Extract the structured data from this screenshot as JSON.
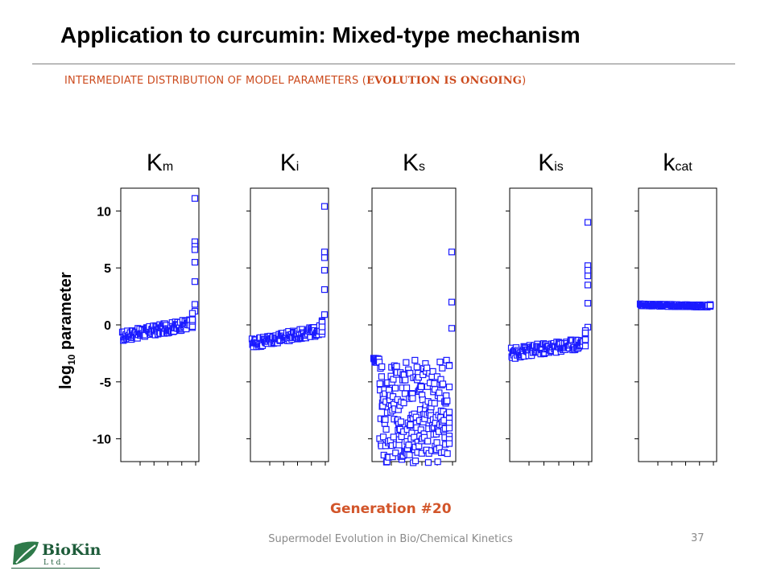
{
  "slide": {
    "title": "Application to curcumin: Mixed-type mechanism",
    "subtitle_pre": "INTERMEDIATE DISTRIBUTION OF MODEL PARAMETERS (",
    "subtitle_bold": "EVOLUTION IS ONGOING",
    "subtitle_post": ")",
    "generation": "Generation  #20",
    "footer_text": "Supermodel Evolution in Bio/Chemical Kinetics",
    "page_number": "37",
    "logo_text": "BioKin",
    "logo_sub": "Ltd."
  },
  "colors": {
    "accent": "#cc4b1e",
    "marker": "#1a1aff",
    "marker_fill": "#ffffff",
    "logo_green": "#1e5c3a"
  },
  "chart_data": {
    "type": "scatter",
    "ylabel_pre": "log",
    "ylabel_sub": "10",
    "ylabel_post": " parameter",
    "ylim": [
      -12,
      12
    ],
    "yticks": [
      10,
      5,
      0,
      -5,
      -10
    ],
    "ytick_labels": [
      "10",
      "5",
      "0",
      "-5",
      "-10"
    ],
    "grid": false,
    "panels": [
      {
        "name_main": "K",
        "name_sub": "m",
        "bulk_start": -1.0,
        "bulk_end": 0.1,
        "bulk_spread": 0.9,
        "outliers": [
          11.1,
          7.3,
          6.9,
          6.6,
          5.5,
          3.8,
          1.8,
          1.2
        ]
      },
      {
        "name_main": "K",
        "name_sub": "i",
        "bulk_start": -1.6,
        "bulk_end": -0.5,
        "bulk_spread": 0.9,
        "outliers": [
          10.4,
          6.4,
          5.9,
          4.8,
          3.1,
          0.9
        ]
      },
      {
        "name_main": "K",
        "name_sub": "s",
        "bulk_start": -3.1,
        "bulk_end": -3.1,
        "bulk_spread": 9.0,
        "outliers": [
          6.4,
          2.0,
          -0.3
        ]
      },
      {
        "name_main": "K",
        "name_sub": "is",
        "bulk_start": -2.5,
        "bulk_end": -1.6,
        "bulk_spread": 1.0,
        "outliers": [
          9.0,
          5.2,
          4.8,
          4.3,
          3.5,
          1.9,
          -0.2
        ]
      },
      {
        "name_main": "k",
        "name_sub": "cat",
        "bulk_start": 1.75,
        "bulk_end": 1.65,
        "bulk_spread": 0.2,
        "outliers": []
      }
    ]
  }
}
